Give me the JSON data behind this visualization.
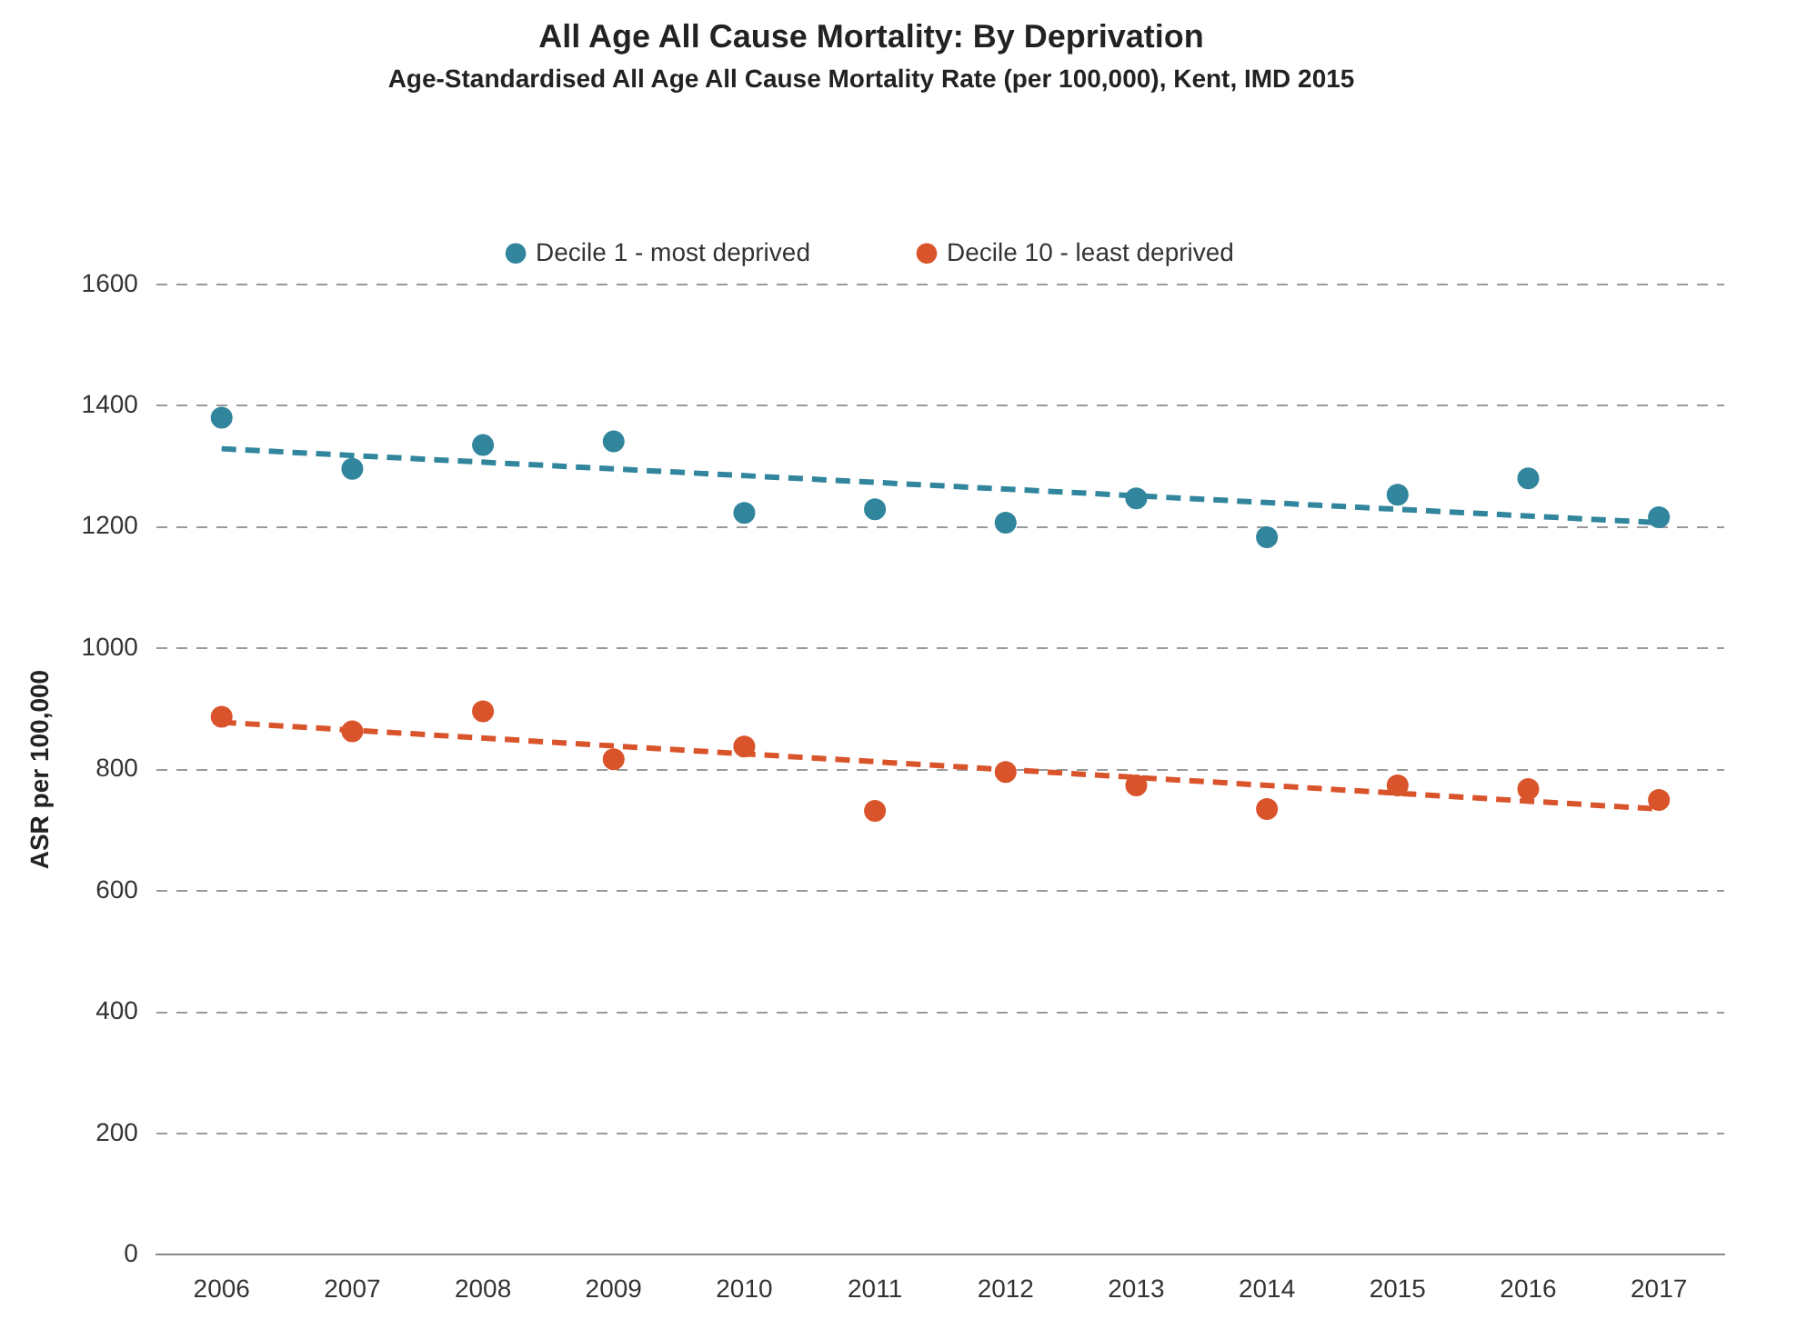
{
  "chart_data": {
    "type": "scatter",
    "title": "All Age All Cause Mortality: By Deprivation",
    "subtitle": "Age-Standardised All Age All Cause Mortality Rate (per 100,000), Kent, IMD 2015",
    "ylabel": "ASR per 100,000",
    "categories": [
      "2006",
      "2007",
      "2008",
      "2009",
      "2010",
      "2011",
      "2012",
      "2013",
      "2014",
      "2015",
      "2016",
      "2017"
    ],
    "series": [
      {
        "name": "Decile 1 - most deprived",
        "color": "#31859c",
        "marker": "circle",
        "values": [
          1380,
          1296,
          1335,
          1341,
          1223,
          1229,
          1207,
          1247,
          1183,
          1253,
          1280,
          1216
        ]
      },
      {
        "name": "Decile 10 - least deprived",
        "color": "#d9532b",
        "marker": "circle",
        "values": [
          887,
          863,
          896,
          817,
          838,
          732,
          796,
          774,
          735,
          774,
          768,
          750
        ]
      },
      {
        "type": "line",
        "color": "#31859c",
        "marker": "none",
        "line_style": "dashed",
        "values": [
          1329,
          null,
          null,
          null,
          null,
          null,
          null,
          null,
          null,
          null,
          null,
          1207
        ]
      },
      {
        "type": "line",
        "color": "#d9532b",
        "marker": "none",
        "line_style": "dashed",
        "values": [
          878,
          null,
          null,
          null,
          null,
          null,
          null,
          null,
          null,
          null,
          null,
          735
        ]
      }
    ],
    "ylim": [
      0,
      1600
    ],
    "yticks": [
      0,
      200,
      400,
      600,
      800,
      1000,
      1200,
      1400,
      1600
    ],
    "grid": "y",
    "legend": "top"
  }
}
